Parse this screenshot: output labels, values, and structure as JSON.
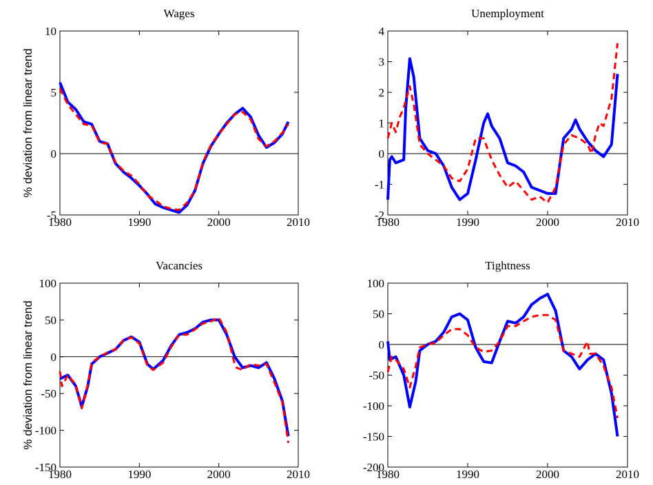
{
  "chart_data": [
    {
      "type": "line",
      "title": "Wages",
      "ylabel": "% deviation from linear trend",
      "xlim": [
        1980,
        2010
      ],
      "xticks": [
        1980,
        1990,
        2000,
        2010
      ],
      "ylim": [
        -5,
        10
      ],
      "yticks": [
        -5,
        0,
        5,
        10
      ],
      "hline": 0,
      "series": [
        {
          "color": "#0000ff",
          "style": "solid",
          "x": [
            1980,
            1981,
            1982,
            1983,
            1984,
            1985,
            1986,
            1987,
            1988,
            1989,
            1990,
            1991,
            1992,
            1993,
            1994,
            1995,
            1996,
            1997,
            1998,
            1999,
            2000,
            2001,
            2002,
            2003,
            2004,
            2005,
            2006,
            2007,
            2008,
            2008.75
          ],
          "values": [
            5.8,
            4.2,
            3.6,
            2.6,
            2.4,
            1.0,
            0.8,
            -0.8,
            -1.5,
            -2.0,
            -2.6,
            -3.3,
            -4.1,
            -4.4,
            -4.6,
            -4.8,
            -4.2,
            -3.0,
            -0.8,
            0.6,
            1.6,
            2.5,
            3.2,
            3.7,
            3.0,
            1.5,
            0.5,
            0.9,
            1.6,
            2.6
          ]
        },
        {
          "color": "#ff0000",
          "style": "dashed",
          "x": [
            1980,
            1981,
            1982,
            1983,
            1984,
            1985,
            1986,
            1987,
            1988,
            1989,
            1990,
            1991,
            1992,
            1993,
            1994,
            1995,
            1996,
            1997,
            1998,
            1999,
            2000,
            2001,
            2002,
            2003,
            2004,
            2005,
            2006,
            2007,
            2008,
            2008.75
          ],
          "values": [
            5.3,
            4.0,
            3.2,
            2.4,
            2.3,
            0.9,
            0.8,
            -0.7,
            -1.4,
            -1.8,
            -2.5,
            -3.4,
            -3.8,
            -4.3,
            -4.5,
            -4.6,
            -4.0,
            -3.0,
            -0.7,
            0.7,
            1.6,
            2.4,
            3.2,
            3.4,
            2.8,
            1.2,
            0.6,
            1.0,
            1.7,
            2.4
          ]
        }
      ]
    },
    {
      "type": "line",
      "title": "Unemployment",
      "xlim": [
        1980,
        2010
      ],
      "xticks": [
        1980,
        1990,
        2000,
        2010
      ],
      "ylim": [
        -2,
        4
      ],
      "yticks": [
        -2,
        -1,
        0,
        1,
        2,
        3,
        4
      ],
      "hline": 0,
      "series": [
        {
          "color": "#0000ff",
          "style": "solid",
          "x": [
            1980,
            1980.25,
            1980.5,
            1981,
            1982,
            1982.25,
            1982.75,
            1983.25,
            1984,
            1985,
            1986,
            1987,
            1988,
            1989,
            1990,
            1991,
            1992,
            1992.5,
            1993,
            1994,
            1995,
            1996,
            1997,
            1998,
            1999,
            2000,
            2001,
            2002,
            2003,
            2003.5,
            2004,
            2005,
            2006,
            2007,
            2008,
            2008.75
          ],
          "values": [
            -1.5,
            -0.2,
            -0.1,
            -0.3,
            -0.2,
            1.5,
            3.1,
            2.5,
            0.5,
            0.1,
            0.0,
            -0.4,
            -1.1,
            -1.5,
            -1.3,
            -0.2,
            1.0,
            1.3,
            0.9,
            0.5,
            -0.3,
            -0.4,
            -0.6,
            -1.1,
            -1.2,
            -1.3,
            -1.3,
            0.5,
            0.8,
            1.1,
            0.8,
            0.4,
            0.1,
            -0.1,
            0.3,
            2.6
          ]
        },
        {
          "color": "#ff0000",
          "style": "dashed",
          "x": [
            1980,
            1980.5,
            1981,
            1981.5,
            1982,
            1982.75,
            1983.25,
            1984,
            1985,
            1986,
            1987,
            1988,
            1989,
            1990,
            1991,
            1992,
            1993,
            1994,
            1995,
            1996,
            1997,
            1998,
            1999,
            2000,
            2001,
            2002,
            2003,
            2004,
            2005,
            2005.5,
            2006,
            2006.5,
            2007,
            2008,
            2008.75
          ],
          "values": [
            0.5,
            1.0,
            0.7,
            1.2,
            1.5,
            2.2,
            1.6,
            0.3,
            0.0,
            -0.2,
            -0.4,
            -0.8,
            -0.9,
            -0.5,
            0.5,
            0.5,
            -0.2,
            -0.7,
            -1.1,
            -0.9,
            -1.2,
            -1.5,
            -1.4,
            -1.6,
            -1.1,
            0.3,
            0.6,
            0.5,
            0.3,
            0.0,
            0.6,
            1.0,
            0.9,
            1.8,
            3.6
          ]
        }
      ]
    },
    {
      "type": "line",
      "title": "Vacancies",
      "ylabel": "% deviation from linear trend",
      "xlim": [
        1980,
        2010
      ],
      "xticks": [
        1980,
        1990,
        2000,
        2010
      ],
      "ylim": [
        -150,
        100
      ],
      "yticks": [
        -150,
        -100,
        -50,
        0,
        50,
        100
      ],
      "hline": 0,
      "series": [
        {
          "color": "#0000ff",
          "style": "solid",
          "x": [
            1980,
            1981,
            1982,
            1982.75,
            1983.5,
            1984,
            1985,
            1986,
            1987,
            1988,
            1989,
            1990,
            1991,
            1991.75,
            1993,
            1994,
            1995,
            1996,
            1997,
            1998,
            1999,
            2000,
            2001,
            2002,
            2003,
            2004,
            2005,
            2006,
            2007,
            2008,
            2008.75
          ],
          "values": [
            -30,
            -25,
            -40,
            -68,
            -40,
            -10,
            0,
            5,
            10,
            22,
            27,
            20,
            -10,
            -17,
            -5,
            15,
            30,
            33,
            38,
            47,
            50,
            50,
            30,
            0,
            -15,
            -12,
            -15,
            -8,
            -30,
            -60,
            -108
          ]
        },
        {
          "color": "#ff0000",
          "style": "dashed",
          "x": [
            1980,
            1980.25,
            1981,
            1982,
            1982.75,
            1983.5,
            1984,
            1985,
            1986,
            1987,
            1988,
            1989,
            1990,
            1991,
            1991.75,
            1993,
            1994,
            1995,
            1996,
            1997,
            1998,
            1999,
            2000,
            2001,
            2002,
            2002.25,
            2003,
            2004,
            2005,
            2006,
            2007,
            2008,
            2008.75
          ],
          "values": [
            -20,
            -40,
            -25,
            -38,
            -70,
            -38,
            -8,
            0,
            6,
            10,
            23,
            26,
            18,
            -12,
            -18,
            -8,
            13,
            30,
            30,
            37,
            45,
            48,
            53,
            33,
            -10,
            -15,
            -18,
            -10,
            -12,
            -10,
            -35,
            -62,
            -117
          ]
        }
      ]
    },
    {
      "type": "line",
      "title": "Tightness",
      "xlim": [
        1980,
        2010
      ],
      "xticks": [
        1980,
        1990,
        2000,
        2010
      ],
      "ylim": [
        -200,
        100
      ],
      "yticks": [
        -200,
        -150,
        -100,
        -50,
        0,
        50,
        100
      ],
      "hline": 0,
      "series": [
        {
          "color": "#0000ff",
          "style": "solid",
          "x": [
            1980,
            1980.25,
            1981,
            1982,
            1982.75,
            1983.5,
            1984,
            1985,
            1986,
            1987,
            1988,
            1989,
            1990,
            1991,
            1992,
            1993,
            1994,
            1995,
            1996,
            1997,
            1998,
            1999,
            2000,
            2001,
            2002,
            2003,
            2004,
            2005,
            2006,
            2007,
            2008,
            2008.75
          ],
          "values": [
            5,
            -25,
            -20,
            -50,
            -102,
            -60,
            -10,
            0,
            5,
            20,
            45,
            50,
            40,
            -5,
            -28,
            -30,
            5,
            38,
            35,
            45,
            65,
            75,
            82,
            55,
            -10,
            -20,
            -40,
            -25,
            -15,
            -25,
            -80,
            -150
          ]
        },
        {
          "color": "#ff0000",
          "style": "dashed",
          "x": [
            1980,
            1980.5,
            1981,
            1982,
            1982.75,
            1983.5,
            1984,
            1985,
            1986,
            1987,
            1988,
            1989,
            1990,
            1991,
            1992,
            1993,
            1994,
            1995,
            1996,
            1997,
            1998,
            1999,
            2000,
            2001,
            2002,
            2003,
            2004,
            2005,
            2005.25,
            2006,
            2007,
            2008,
            2008.75
          ],
          "values": [
            -45,
            -20,
            -25,
            -40,
            -70,
            -35,
            -5,
            0,
            3,
            15,
            25,
            25,
            15,
            -5,
            -12,
            -10,
            5,
            30,
            30,
            38,
            45,
            48,
            48,
            40,
            -10,
            -15,
            -20,
            5,
            -15,
            -15,
            -35,
            -70,
            -120
          ]
        }
      ]
    }
  ]
}
